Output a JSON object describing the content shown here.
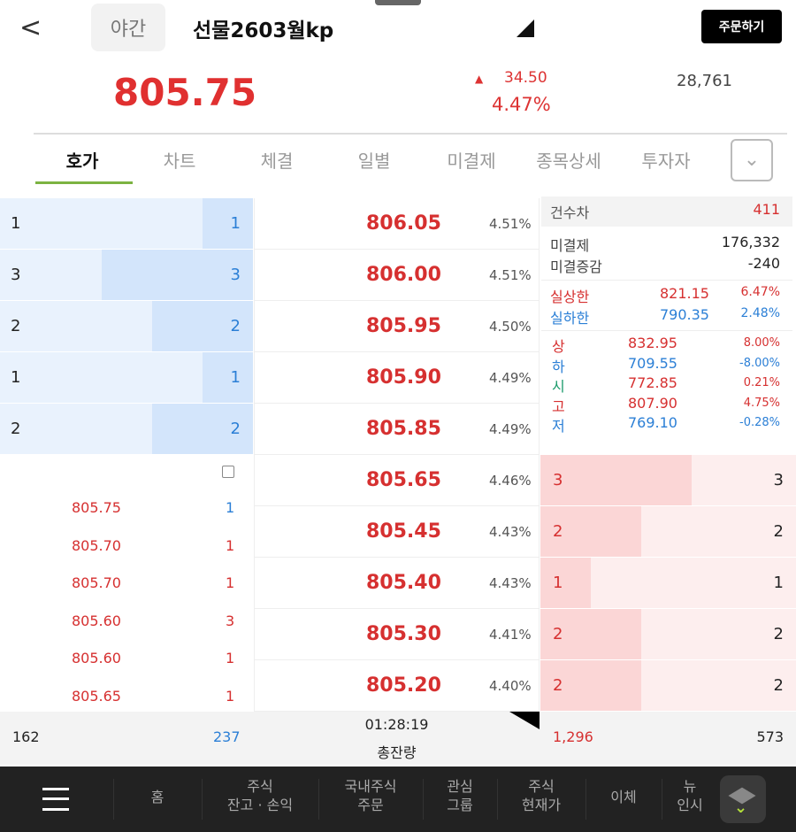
{
  "header": {
    "back": "<",
    "session": "야간",
    "title": "선물2603월kp",
    "order_button": "주문하기"
  },
  "quote": {
    "price": "805.75",
    "change_arrow": "▲",
    "change": "34.50",
    "change_pct": "4.47%",
    "volume": "28,761"
  },
  "tabs": [
    "호가",
    "차트",
    "체결",
    "일별",
    "미결제",
    "종목상세",
    "투자자"
  ],
  "colors": {
    "up": "#d63030",
    "down": "#2b7fd6",
    "accent": "#7cb342"
  },
  "asks": [
    {
      "qty_left": "1",
      "qty": "1",
      "price": "806.05",
      "pct": "4.51%",
      "fill": 0.333
    },
    {
      "qty_left": "3",
      "qty": "3",
      "price": "806.00",
      "pct": "4.51%",
      "fill": 1
    },
    {
      "qty_left": "2",
      "qty": "2",
      "price": "805.95",
      "pct": "4.50%",
      "fill": 0.667
    },
    {
      "qty_left": "1",
      "qty": "1",
      "price": "805.90",
      "pct": "4.49%",
      "fill": 0.333
    },
    {
      "qty_left": "2",
      "qty": "2",
      "price": "805.85",
      "pct": "4.49%",
      "fill": 0.667
    }
  ],
  "bids": [
    {
      "qty": "3",
      "qty_right": "3",
      "price": "805.65",
      "pct": "4.46%",
      "fill": 1
    },
    {
      "qty": "2",
      "qty_right": "2",
      "price": "805.45",
      "pct": "4.43%",
      "fill": 0.667
    },
    {
      "qty": "1",
      "qty_right": "1",
      "price": "805.40",
      "pct": "4.43%",
      "fill": 0.333
    },
    {
      "qty": "2",
      "qty_right": "2",
      "price": "805.30",
      "pct": "4.41%",
      "fill": 0.667
    },
    {
      "qty": "2",
      "qty_right": "2",
      "price": "805.20",
      "pct": "4.40%",
      "fill": 0.667
    }
  ],
  "ticks": [
    {
      "price": "805.75",
      "qty": "1",
      "qty_color": "#2b7fd6"
    },
    {
      "price": "805.70",
      "qty": "1",
      "qty_color": "#d63030"
    },
    {
      "price": "805.70",
      "qty": "1",
      "qty_color": "#d63030"
    },
    {
      "price": "805.60",
      "qty": "3",
      "qty_color": "#d63030"
    },
    {
      "price": "805.60",
      "qty": "1",
      "qty_color": "#d63030"
    },
    {
      "price": "805.65",
      "qty": "1",
      "qty_color": "#d63030"
    }
  ],
  "info": {
    "count_diff_label": "건수차",
    "count_diff": "411",
    "oi_label": "미결제",
    "oi": "176,332",
    "oi_chg_label": "미결증감",
    "oi_chg": "-240",
    "real_upper_label": "실상한",
    "real_upper": "821.15",
    "real_upper_pct": "6.47%",
    "real_lower_label": "실하한",
    "real_lower": "790.35",
    "real_lower_pct": "2.48%",
    "limits": [
      {
        "label": "상",
        "value": "832.95",
        "pct": "8.00%",
        "lc": "#d63030",
        "vc": "#d63030",
        "pc": "#d63030"
      },
      {
        "label": "하",
        "value": "709.55",
        "pct": "-8.00%",
        "lc": "#2b7fd6",
        "vc": "#2b7fd6",
        "pc": "#2b7fd6"
      },
      {
        "label": "시",
        "value": "772.85",
        "pct": "0.21%",
        "lc": "#1a9a6a",
        "vc": "#d63030",
        "pc": "#d63030"
      },
      {
        "label": "고",
        "value": "807.90",
        "pct": "4.75%",
        "lc": "#d63030",
        "vc": "#d63030",
        "pc": "#d63030"
      },
      {
        "label": "저",
        "value": "769.10",
        "pct": "-0.28%",
        "lc": "#2b7fd6",
        "vc": "#2b7fd6",
        "pc": "#2b7fd6"
      }
    ]
  },
  "summary": {
    "ask_count": "162",
    "ask_total": "237",
    "time": "01:28:19",
    "label": "총잔량",
    "bid_total": "1,296",
    "bid_count": "573"
  },
  "nav": [
    {
      "label": "홈"
    },
    {
      "label": "주식\n잔고 · 손익"
    },
    {
      "label": "국내주식\n주문"
    },
    {
      "label": "관심\n그룹"
    },
    {
      "label": "주식\n현재가"
    },
    {
      "label": "이체"
    },
    {
      "label": "뉴\n인시"
    }
  ]
}
